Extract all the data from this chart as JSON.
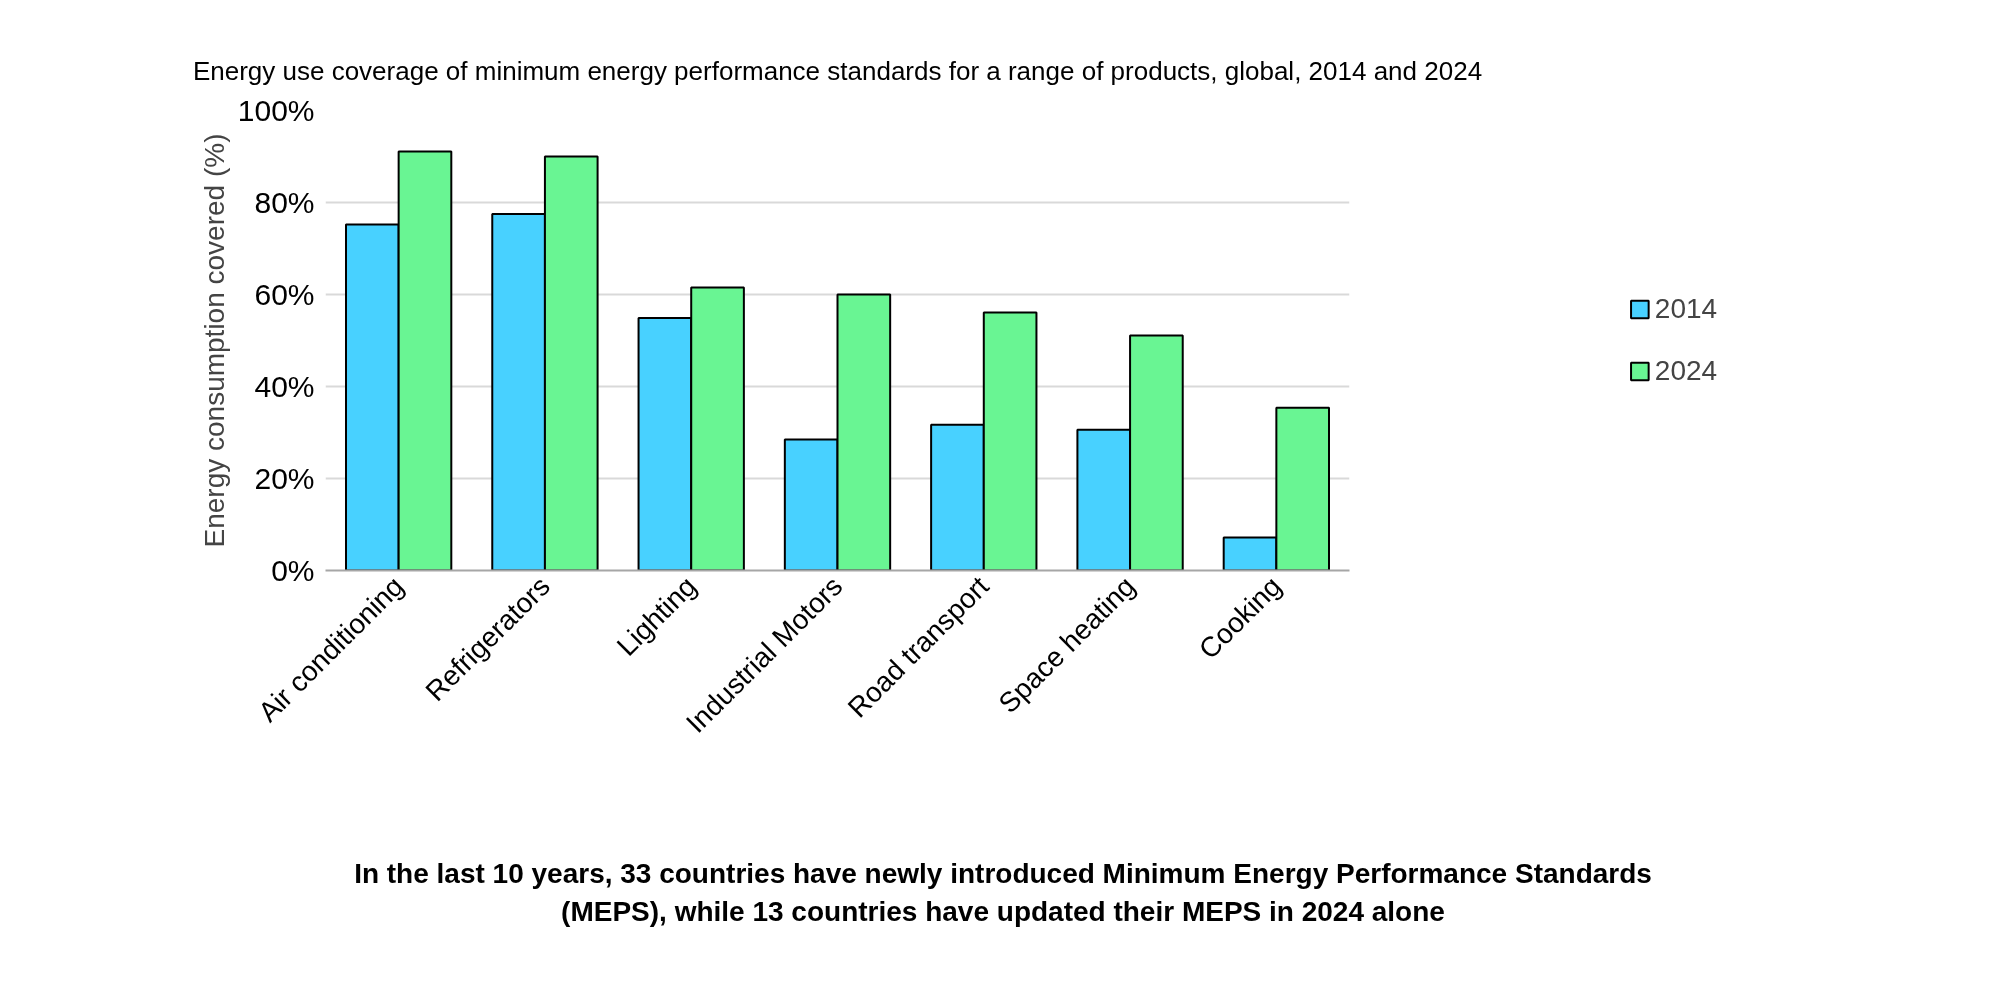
{
  "chart_data": {
    "type": "bar",
    "title": "Energy use coverage of minimum energy performance standards for a range of products, global, 2014 and 2024",
    "ylabel": "Energy consumption covered (%)",
    "categories": [
      "Air conditioning",
      "Refrigerators",
      "Lighting",
      "Industrial Motors",
      "Road transport",
      "Space heating",
      "Cooking"
    ],
    "series": [
      {
        "name": "2014",
        "color": "#48d1ff",
        "values": [
          75.2,
          77.5,
          54.9,
          28.5,
          31.7,
          30.6,
          7.2
        ]
      },
      {
        "name": "2024",
        "color": "#69f593",
        "values": [
          91.1,
          90.0,
          61.5,
          60.0,
          56.1,
          51.1,
          35.4
        ]
      }
    ],
    "ylim": [
      0,
      100
    ],
    "yticks": [
      {
        "value": 0,
        "label": "0%"
      },
      {
        "value": 20,
        "label": "20%"
      },
      {
        "value": 40,
        "label": "40%"
      },
      {
        "value": 60,
        "label": "60%"
      },
      {
        "value": 80,
        "label": "80%"
      },
      {
        "value": 100,
        "label": "100%"
      }
    ],
    "grid": "y",
    "legend": "right",
    "annotations": [
      "In the last 10 years, 33 countries have newly introduced Minimum Energy Performance Standards (MEPS), while 13 countries have updated their MEPS in 2024 alone"
    ]
  }
}
